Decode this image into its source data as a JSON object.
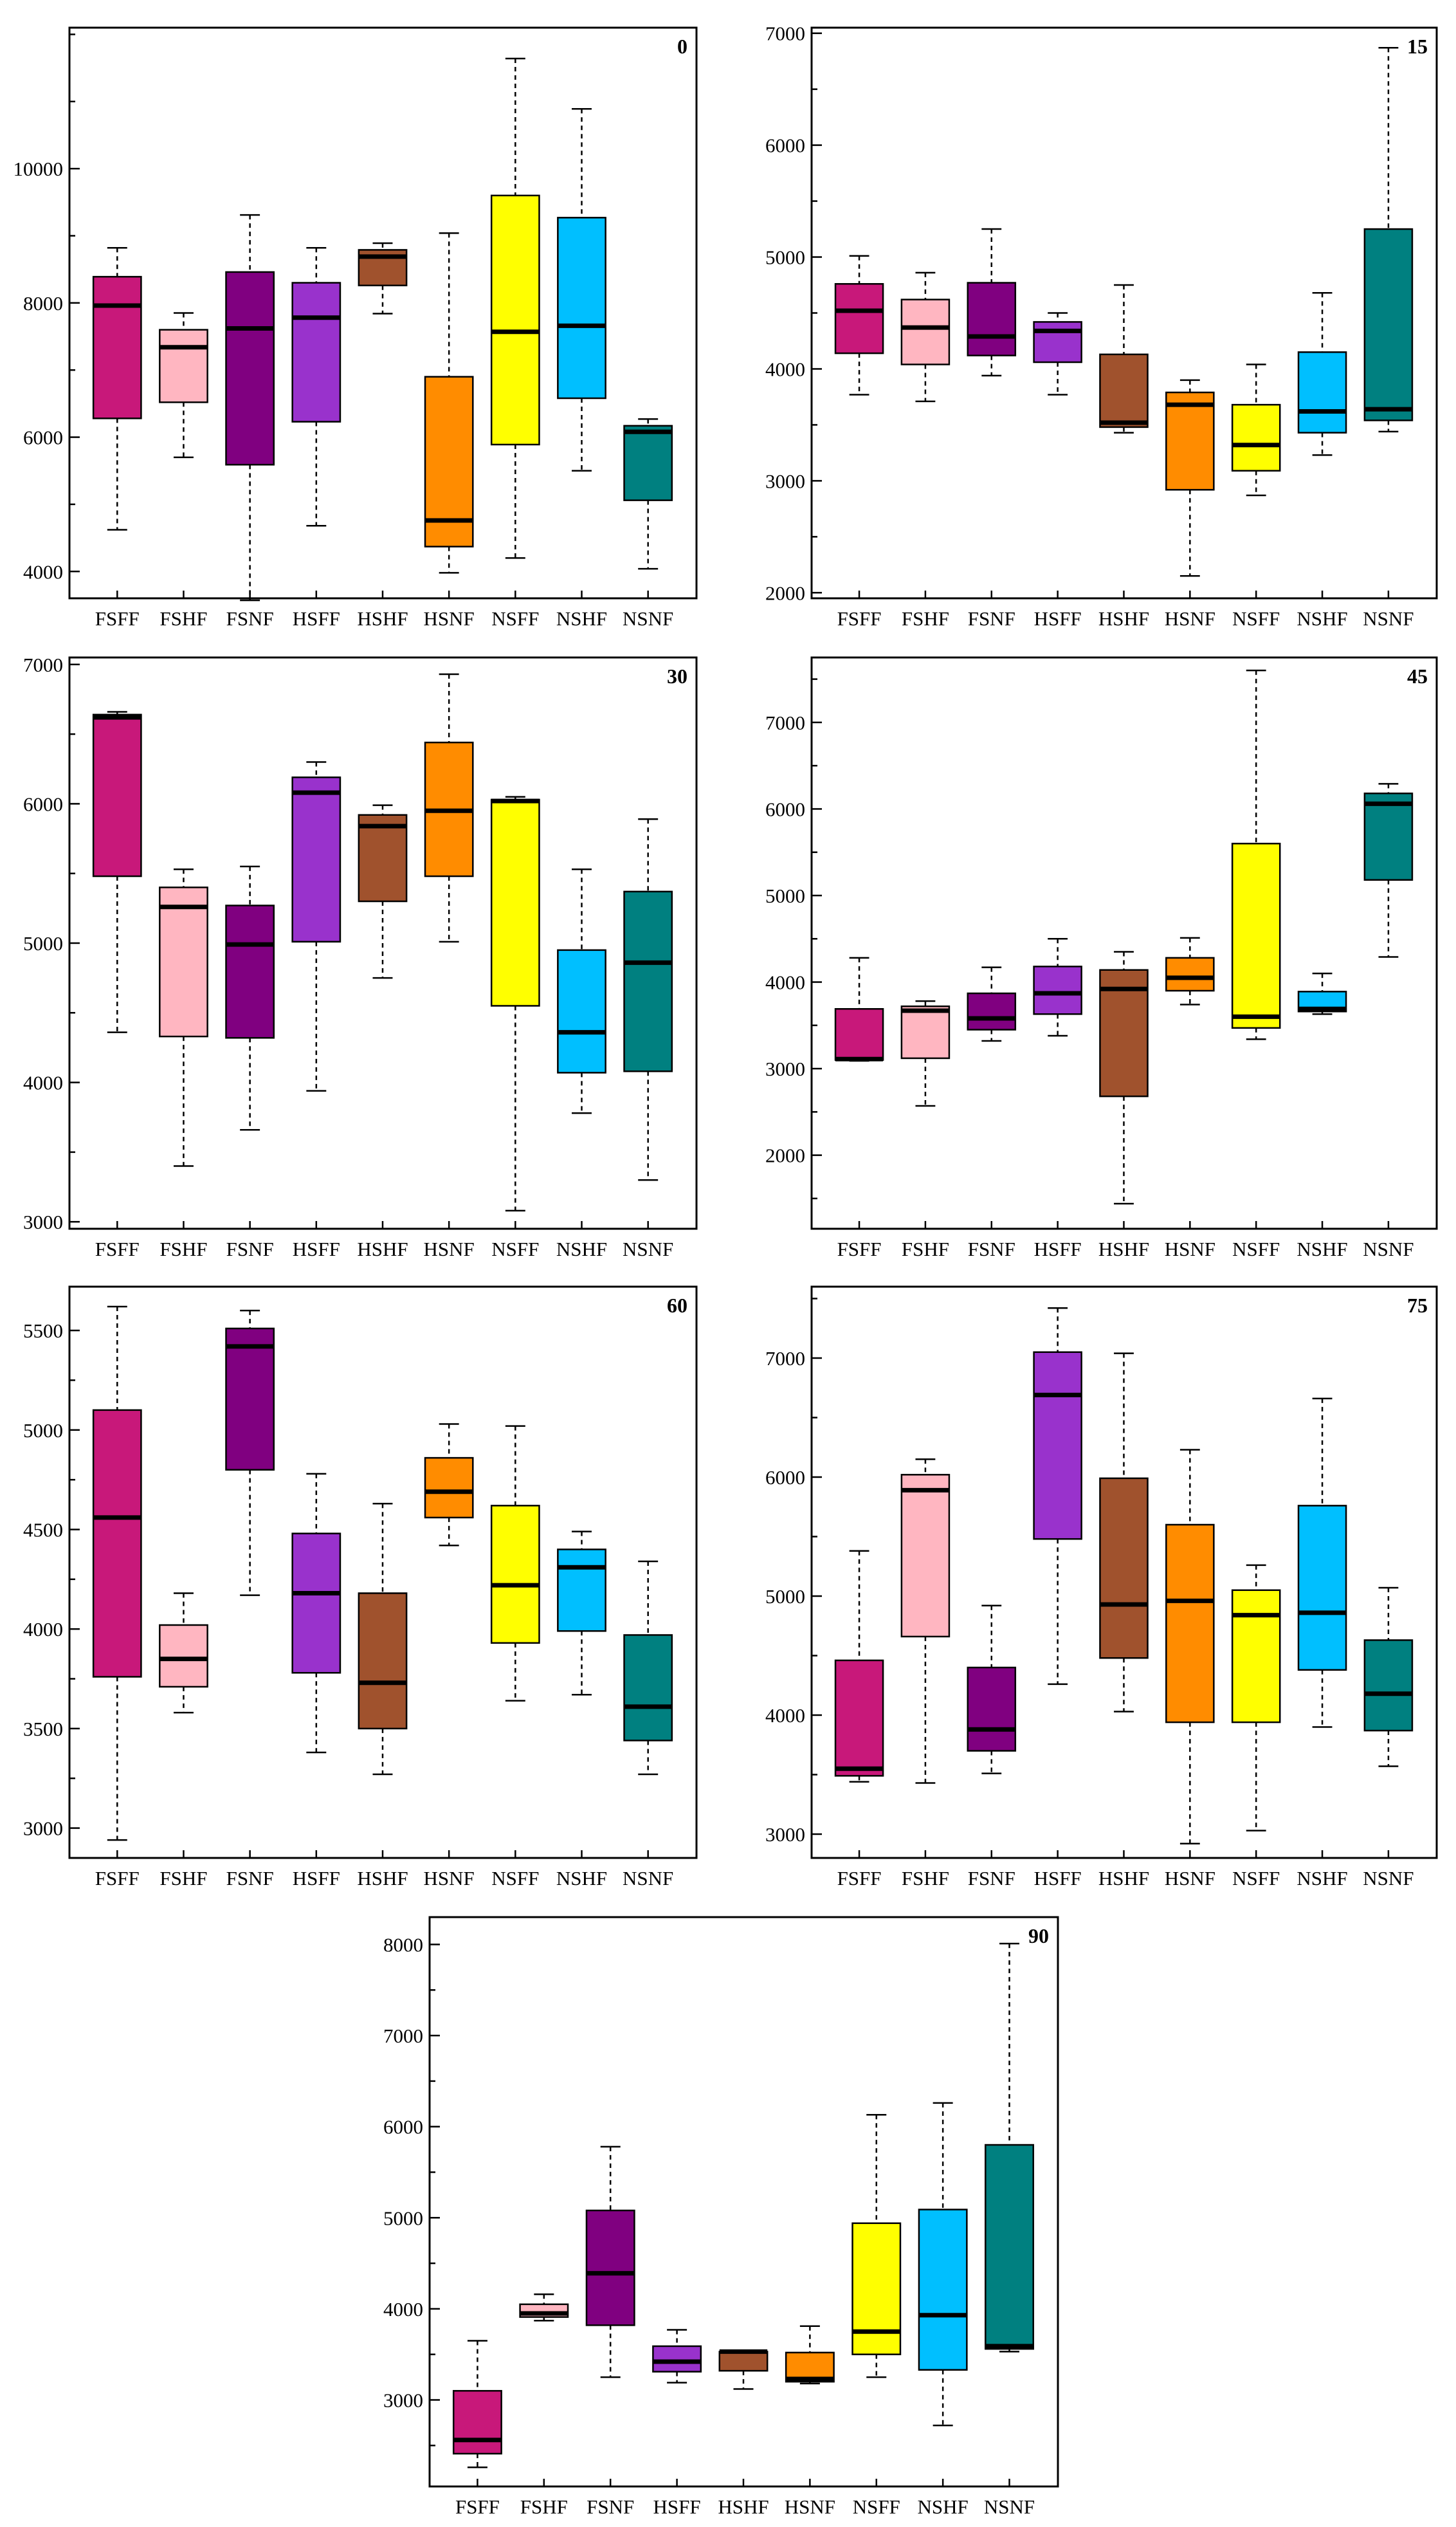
{
  "chart_data": [
    {
      "type": "box",
      "title": "0",
      "categories": [
        "FSFF",
        "FSHF",
        "FSNF",
        "HSFF",
        "HSHF",
        "HSNF",
        "NSFF",
        "NSHF",
        "NSNF"
      ],
      "ylim": [
        3600,
        12100
      ],
      "yticks": [
        4000,
        6000,
        8000,
        10000
      ],
      "minor_step": 1000,
      "boxes": [
        {
          "min": 4620,
          "q1": 6280,
          "median": 7960,
          "q3": 8390,
          "max": 8820
        },
        {
          "min": 5700,
          "q1": 6520,
          "median": 7340,
          "q3": 7600,
          "max": 7850
        },
        {
          "min": 3570,
          "q1": 5590,
          "median": 7620,
          "q3": 8460,
          "max": 9310
        },
        {
          "min": 4680,
          "q1": 6230,
          "median": 7780,
          "q3": 8300,
          "max": 8820
        },
        {
          "min": 7840,
          "q1": 8260,
          "median": 8690,
          "q3": 8790,
          "max": 8890
        },
        {
          "min": 3980,
          "q1": 4370,
          "median": 4760,
          "q3": 6900,
          "max": 9040
        },
        {
          "min": 4200,
          "q1": 5890,
          "median": 7570,
          "q3": 9600,
          "max": 11640
        },
        {
          "min": 5500,
          "q1": 6580,
          "median": 7660,
          "q3": 9270,
          "max": 10890
        },
        {
          "min": 4040,
          "q1": 5060,
          "median": 6080,
          "q3": 6170,
          "max": 6270
        }
      ]
    },
    {
      "type": "box",
      "title": "15",
      "categories": [
        "FSFF",
        "FSHF",
        "FSNF",
        "HSFF",
        "HSHF",
        "HSNF",
        "NSFF",
        "NSHF",
        "NSNF"
      ],
      "ylim": [
        1950,
        7050
      ],
      "yticks": [
        2000,
        3000,
        4000,
        5000,
        6000,
        7000
      ],
      "minor_step": 500,
      "boxes": [
        {
          "min": 3770,
          "q1": 4140,
          "median": 4520,
          "q3": 4760,
          "max": 5010
        },
        {
          "min": 3710,
          "q1": 4040,
          "median": 4370,
          "q3": 4620,
          "max": 4860
        },
        {
          "min": 3940,
          "q1": 4120,
          "median": 4290,
          "q3": 4770,
          "max": 5250
        },
        {
          "min": 3770,
          "q1": 4060,
          "median": 4340,
          "q3": 4420,
          "max": 4500
        },
        {
          "min": 3430,
          "q1": 3480,
          "median": 3520,
          "q3": 4130,
          "max": 4750
        },
        {
          "min": 2150,
          "q1": 2920,
          "median": 3680,
          "q3": 3790,
          "max": 3900
        },
        {
          "min": 2870,
          "q1": 3090,
          "median": 3320,
          "q3": 3680,
          "max": 4040
        },
        {
          "min": 3230,
          "q1": 3430,
          "median": 3620,
          "q3": 4150,
          "max": 4680
        },
        {
          "min": 3440,
          "q1": 3540,
          "median": 3640,
          "q3": 5250,
          "max": 6870
        }
      ]
    },
    {
      "type": "box",
      "title": "30",
      "categories": [
        "FSFF",
        "FSHF",
        "FSNF",
        "HSFF",
        "HSHF",
        "HSNF",
        "NSFF",
        "NSHF",
        "NSNF"
      ],
      "ylim": [
        2950,
        7050
      ],
      "yticks": [
        3000,
        4000,
        5000,
        6000,
        7000
      ],
      "minor_step": 500,
      "boxes": [
        {
          "min": 4360,
          "q1": 5480,
          "median": 6620,
          "q3": 6640,
          "max": 6660
        },
        {
          "min": 3400,
          "q1": 4330,
          "median": 5260,
          "q3": 5400,
          "max": 5530
        },
        {
          "min": 3660,
          "q1": 4320,
          "median": 4990,
          "q3": 5270,
          "max": 5550
        },
        {
          "min": 3940,
          "q1": 5010,
          "median": 6080,
          "q3": 6190,
          "max": 6300
        },
        {
          "min": 4750,
          "q1": 5300,
          "median": 5840,
          "q3": 5920,
          "max": 5990
        },
        {
          "min": 5010,
          "q1": 5480,
          "median": 5950,
          "q3": 6440,
          "max": 6930
        },
        {
          "min": 3080,
          "q1": 4550,
          "median": 6020,
          "q3": 6030,
          "max": 6050
        },
        {
          "min": 3780,
          "q1": 4070,
          "median": 4360,
          "q3": 4950,
          "max": 5530
        },
        {
          "min": 3300,
          "q1": 4080,
          "median": 4860,
          "q3": 5370,
          "max": 5890
        }
      ]
    },
    {
      "type": "box",
      "title": "45",
      "categories": [
        "FSFF",
        "FSHF",
        "FSNF",
        "HSFF",
        "HSHF",
        "HSNF",
        "NSFF",
        "NSHF",
        "NSNF"
      ],
      "ylim": [
        1150,
        7750
      ],
      "yticks": [
        2000,
        3000,
        4000,
        5000,
        6000,
        7000
      ],
      "minor_step": 500,
      "boxes": [
        {
          "min": 3090,
          "q1": 3100,
          "median": 3110,
          "q3": 3690,
          "max": 4280
        },
        {
          "min": 2570,
          "q1": 3120,
          "median": 3670,
          "q3": 3720,
          "max": 3780
        },
        {
          "min": 3320,
          "q1": 3450,
          "median": 3580,
          "q3": 3870,
          "max": 4170
        },
        {
          "min": 3380,
          "q1": 3630,
          "median": 3870,
          "q3": 4180,
          "max": 4500
        },
        {
          "min": 1440,
          "q1": 2680,
          "median": 3920,
          "q3": 4140,
          "max": 4350
        },
        {
          "min": 3740,
          "q1": 3900,
          "median": 4050,
          "q3": 4280,
          "max": 4510
        },
        {
          "min": 3340,
          "q1": 3470,
          "median": 3600,
          "q3": 5600,
          "max": 7600
        },
        {
          "min": 3630,
          "q1": 3660,
          "median": 3690,
          "q3": 3890,
          "max": 4100
        },
        {
          "min": 4290,
          "q1": 5180,
          "median": 6060,
          "q3": 6180,
          "max": 6290
        }
      ]
    },
    {
      "type": "box",
      "title": "60",
      "categories": [
        "FSFF",
        "FSHF",
        "FSNF",
        "HSFF",
        "HSHF",
        "HSNF",
        "NSFF",
        "NSHF",
        "NSNF"
      ],
      "ylim": [
        2850,
        5720
      ],
      "yticks": [
        3000,
        3500,
        4000,
        4500,
        5000,
        5500
      ],
      "minor_step": 250,
      "boxes": [
        {
          "min": 2940,
          "q1": 3760,
          "median": 4560,
          "q3": 5100,
          "max": 5620
        },
        {
          "min": 3580,
          "q1": 3710,
          "median": 3850,
          "q3": 4020,
          "max": 4180
        },
        {
          "min": 4170,
          "q1": 4800,
          "median": 5420,
          "q3": 5510,
          "max": 5600
        },
        {
          "min": 3380,
          "q1": 3780,
          "median": 4180,
          "q3": 4480,
          "max": 4780
        },
        {
          "min": 3270,
          "q1": 3500,
          "median": 3730,
          "q3": 4180,
          "max": 4630
        },
        {
          "min": 4420,
          "q1": 4560,
          "median": 4690,
          "q3": 4860,
          "max": 5030
        },
        {
          "min": 3640,
          "q1": 3930,
          "median": 4220,
          "q3": 4620,
          "max": 5020
        },
        {
          "min": 3670,
          "q1": 3990,
          "median": 4310,
          "q3": 4400,
          "max": 4490
        },
        {
          "min": 3270,
          "q1": 3440,
          "median": 3610,
          "q3": 3970,
          "max": 4340
        }
      ]
    },
    {
      "type": "box",
      "title": "75",
      "categories": [
        "FSFF",
        "FSHF",
        "FSNF",
        "HSFF",
        "HSHF",
        "HSNF",
        "NSFF",
        "NSHF",
        "NSNF"
      ],
      "ylim": [
        2800,
        7600
      ],
      "yticks": [
        3000,
        4000,
        5000,
        6000,
        7000
      ],
      "minor_step": 500,
      "boxes": [
        {
          "min": 3440,
          "q1": 3490,
          "median": 3550,
          "q3": 4460,
          "max": 5380
        },
        {
          "min": 3430,
          "q1": 4660,
          "median": 5890,
          "q3": 6020,
          "max": 6150
        },
        {
          "min": 3510,
          "q1": 3700,
          "median": 3880,
          "q3": 4400,
          "max": 4920
        },
        {
          "min": 4260,
          "q1": 5480,
          "median": 6690,
          "q3": 7050,
          "max": 7420
        },
        {
          "min": 4030,
          "q1": 4480,
          "median": 4930,
          "q3": 5990,
          "max": 7040
        },
        {
          "min": 2920,
          "q1": 3940,
          "median": 4960,
          "q3": 5600,
          "max": 6230
        },
        {
          "min": 3030,
          "q1": 3940,
          "median": 4840,
          "q3": 5050,
          "max": 5260
        },
        {
          "min": 3900,
          "q1": 4380,
          "median": 4860,
          "q3": 5760,
          "max": 6660
        },
        {
          "min": 3570,
          "q1": 3870,
          "median": 4180,
          "q3": 4630,
          "max": 5070
        }
      ]
    },
    {
      "type": "box",
      "title": "90",
      "categories": [
        "FSFF",
        "FSHF",
        "FSNF",
        "HSFF",
        "HSHF",
        "HSNF",
        "NSFF",
        "NSHF",
        "NSNF"
      ],
      "ylim": [
        2050,
        8300
      ],
      "yticks": [
        3000,
        4000,
        5000,
        6000,
        7000,
        8000
      ],
      "minor_step": 500,
      "boxes": [
        {
          "min": 2260,
          "q1": 2410,
          "median": 2560,
          "q3": 3100,
          "max": 3650
        },
        {
          "min": 3870,
          "q1": 3910,
          "median": 3950,
          "q3": 4050,
          "max": 4160
        },
        {
          "min": 3250,
          "q1": 3820,
          "median": 4390,
          "q3": 5080,
          "max": 5780
        },
        {
          "min": 3190,
          "q1": 3310,
          "median": 3420,
          "q3": 3590,
          "max": 3770
        },
        {
          "min": 3120,
          "q1": 3320,
          "median": 3530,
          "q3": 3530,
          "max": 3540
        },
        {
          "min": 3180,
          "q1": 3200,
          "median": 3230,
          "q3": 3520,
          "max": 3810
        },
        {
          "min": 3250,
          "q1": 3500,
          "median": 3750,
          "q3": 4940,
          "max": 6130
        },
        {
          "min": 2720,
          "q1": 3330,
          "median": 3930,
          "q3": 5090,
          "max": 6260
        },
        {
          "min": 3530,
          "q1": 3560,
          "median": 3590,
          "q3": 5800,
          "max": 8010
        }
      ]
    }
  ],
  "box_colors": [
    "#C8187A",
    "#FFB6C1",
    "#800080",
    "#9932CC",
    "#A0522D",
    "#FF8C00",
    "#FFFF00",
    "#00BFFF",
    "#008080"
  ]
}
